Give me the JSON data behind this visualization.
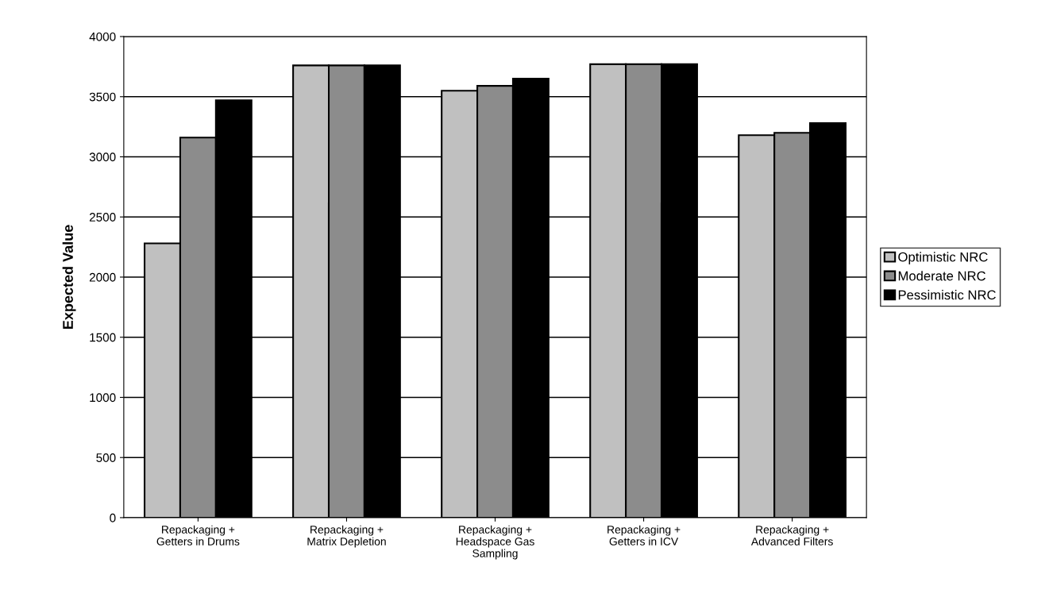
{
  "chart_data": {
    "type": "bar",
    "ylabel": "Expected Value",
    "categories": [
      "Repackaging +\nGetters in Drums",
      "Repackaging +\nMatrix Depletion",
      "Repackaging +\nHeadspace Gas\nSampling",
      "Repackaging +\nGetters in ICV",
      "Repackaging +\nAdvanced Filters"
    ],
    "series": [
      {
        "name": "Optimistic NRC",
        "color": "#c0c0c0",
        "values": [
          2280,
          3760,
          3550,
          3770,
          3180
        ]
      },
      {
        "name": "Moderate NRC",
        "color": "#8c8c8c",
        "values": [
          3160,
          3760,
          3590,
          3770,
          3200
        ]
      },
      {
        "name": "Pessimistic NRC",
        "color": "#000000",
        "values": [
          3470,
          3760,
          3650,
          3770,
          3280
        ]
      }
    ],
    "ylim": [
      0,
      4000
    ],
    "yticks": [
      0,
      500,
      1000,
      1500,
      2000,
      2500,
      3000,
      3500,
      4000
    ],
    "grid": "y",
    "legend": "right"
  }
}
